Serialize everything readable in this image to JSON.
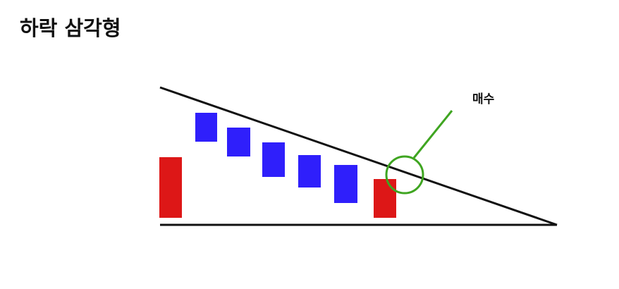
{
  "title": "하락 삼각형",
  "annotation": {
    "label": "매수"
  },
  "colors": {
    "red_candle": "#dd1717",
    "blue_candle": "#2f1ffb",
    "lines": "#111111",
    "marker": "#3fa521"
  }
}
